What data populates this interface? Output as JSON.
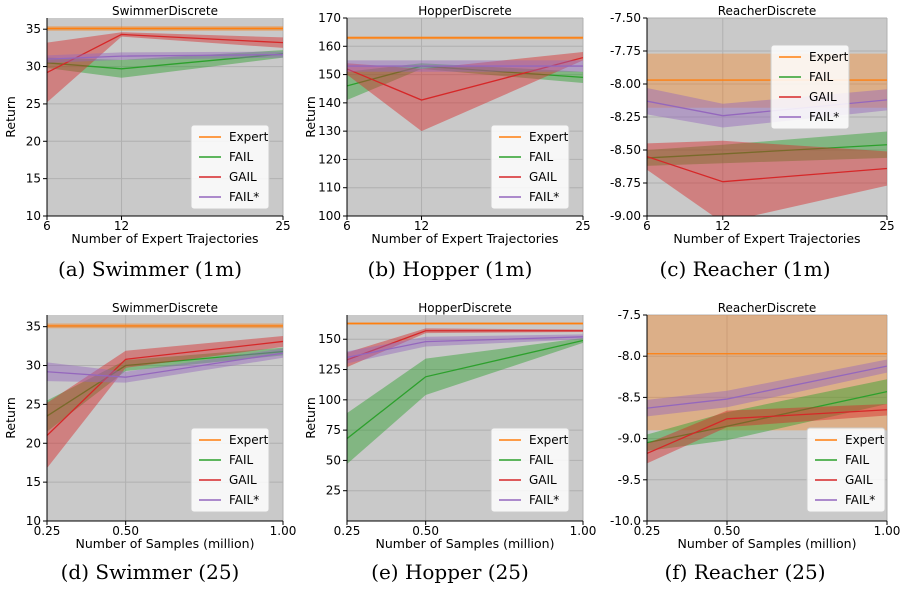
{
  "figure": {
    "captions": [
      "(a) Swimmer (1m)",
      "(b) Hopper (1m)",
      "(c) Reacher (1m)",
      "(d) Swimmer (25)",
      "(e) Hopper (25)",
      "(f) Reacher (25)"
    ]
  },
  "colors": {
    "Expert": "#ff7f0e",
    "FAIL": "#2ca02c",
    "GAIL": "#d62728",
    "FAIL*": "#9467bd",
    "panel_bg": "#c9c9c9",
    "grid": "#b0b0b0"
  },
  "chart_data": [
    {
      "type": "line",
      "title": "SwimmerDiscrete",
      "xlabel": "Number of Expert Trajectories",
      "ylabel": "Return",
      "x": [
        6,
        12,
        25
      ],
      "xticklabels": [
        "6",
        "12",
        "25"
      ],
      "xlim": [
        6,
        25
      ],
      "ylim": [
        10,
        36.5
      ],
      "yticks": [
        10,
        15,
        20,
        25,
        30,
        35
      ],
      "yticklabels": [
        "10",
        "15",
        "20",
        "25",
        "30",
        "35"
      ],
      "legend_position": "lower right",
      "grid": true,
      "series": [
        {
          "name": "Expert",
          "values": [
            35.1,
            35.1,
            35.1
          ],
          "lower": [
            34.8,
            34.8,
            34.8
          ],
          "upper": [
            35.4,
            35.4,
            35.4
          ]
        },
        {
          "name": "FAIL",
          "values": [
            30.5,
            29.7,
            31.7
          ],
          "lower": [
            29.8,
            28.5,
            31.2
          ],
          "upper": [
            31.2,
            30.9,
            32.2
          ]
        },
        {
          "name": "GAIL",
          "values": [
            29.2,
            34.3,
            33.2
          ],
          "lower": [
            25.2,
            34.0,
            32.5
          ],
          "upper": [
            33.2,
            34.6,
            33.9
          ]
        },
        {
          "name": "FAIL*",
          "values": [
            31.0,
            31.4,
            31.6
          ],
          "lower": [
            30.5,
            30.9,
            31.2
          ],
          "upper": [
            31.5,
            31.9,
            32.0
          ]
        }
      ]
    },
    {
      "type": "line",
      "title": "HopperDiscrete",
      "xlabel": "Number of Expert Trajectories",
      "ylabel": "Return",
      "x": [
        6,
        12,
        25
      ],
      "xticklabels": [
        "6",
        "12",
        "25"
      ],
      "xlim": [
        6,
        25
      ],
      "ylim": [
        100,
        170
      ],
      "yticks": [
        100,
        110,
        120,
        130,
        140,
        150,
        160,
        170
      ],
      "yticklabels": [
        "100",
        "110",
        "120",
        "130",
        "140",
        "150",
        "160",
        "170"
      ],
      "legend_position": "lower right",
      "grid": true,
      "series": [
        {
          "name": "Expert",
          "values": [
            163,
            163,
            163
          ],
          "lower": [
            162.5,
            162.5,
            162.5
          ],
          "upper": [
            163.5,
            163.5,
            163.5
          ]
        },
        {
          "name": "FAIL",
          "values": [
            146,
            153,
            149
          ],
          "lower": [
            141,
            152,
            147
          ],
          "upper": [
            151,
            154,
            151
          ]
        },
        {
          "name": "GAIL",
          "values": [
            152,
            141,
            156
          ],
          "lower": [
            150,
            130,
            155
          ],
          "upper": [
            154,
            152,
            158
          ]
        },
        {
          "name": "FAIL*",
          "values": [
            153,
            153,
            153
          ],
          "lower": [
            151,
            151,
            151
          ],
          "upper": [
            155,
            155,
            155
          ]
        }
      ]
    },
    {
      "type": "line",
      "title": "ReacherDiscrete",
      "xlabel": "Number of Expert Trajectories",
      "ylabel": "",
      "x": [
        6,
        12,
        25
      ],
      "xticklabels": [
        "6",
        "12",
        "25"
      ],
      "xlim": [
        6,
        25
      ],
      "ylim": [
        -9.0,
        -7.5
      ],
      "yticks": [
        -9.0,
        -8.75,
        -8.5,
        -8.25,
        -8.0,
        -7.75,
        -7.5
      ],
      "yticklabels": [
        "-9.00",
        "-8.75",
        "-8.50",
        "-8.25",
        "-8.00",
        "-7.75",
        "-7.50"
      ],
      "legend_position": "upper right",
      "grid": true,
      "series": [
        {
          "name": "Expert",
          "values": [
            -7.97,
            -7.97,
            -7.97
          ],
          "lower": [
            -8.18,
            -8.18,
            -8.18
          ],
          "upper": [
            -7.77,
            -7.77,
            -7.77
          ]
        },
        {
          "name": "FAIL",
          "values": [
            -8.56,
            -8.53,
            -8.46
          ],
          "lower": [
            -8.62,
            -8.6,
            -8.56
          ],
          "upper": [
            -8.5,
            -8.46,
            -8.36
          ]
        },
        {
          "name": "GAIL",
          "values": [
            -8.55,
            -8.74,
            -8.64
          ],
          "lower": [
            -8.65,
            -9.05,
            -8.77
          ],
          "upper": [
            -8.45,
            -8.43,
            -8.51
          ]
        },
        {
          "name": "FAIL*",
          "values": [
            -8.13,
            -8.24,
            -8.12
          ],
          "lower": [
            -8.23,
            -8.33,
            -8.2
          ],
          "upper": [
            -8.03,
            -8.15,
            -8.04
          ]
        }
      ]
    },
    {
      "type": "line",
      "title": "SwimmerDiscrete",
      "xlabel": "Number of Samples (million)",
      "ylabel": "Return",
      "x": [
        0.25,
        0.5,
        1.0
      ],
      "xticklabels": [
        "0.25",
        "0.50",
        "1.00"
      ],
      "xlim": [
        0.25,
        1.0
      ],
      "ylim": [
        10,
        36.5
      ],
      "yticks": [
        10,
        15,
        20,
        25,
        30,
        35
      ],
      "yticklabels": [
        "10",
        "15",
        "20",
        "25",
        "30",
        "35"
      ],
      "legend_position": "lower right",
      "grid": true,
      "series": [
        {
          "name": "Expert",
          "values": [
            35.1,
            35.1,
            35.1
          ],
          "lower": [
            34.8,
            34.8,
            34.8
          ],
          "upper": [
            35.4,
            35.4,
            35.4
          ]
        },
        {
          "name": "FAIL",
          "values": [
            23.5,
            30.0,
            31.8
          ],
          "lower": [
            21.5,
            29.3,
            31.3
          ],
          "upper": [
            25.5,
            30.7,
            32.3
          ]
        },
        {
          "name": "GAIL",
          "values": [
            21.0,
            30.8,
            33.1
          ],
          "lower": [
            16.8,
            29.7,
            32.4
          ],
          "upper": [
            25.2,
            31.9,
            33.8
          ]
        },
        {
          "name": "FAIL*",
          "values": [
            29.2,
            28.5,
            31.6
          ],
          "lower": [
            28.0,
            27.8,
            31.0
          ],
          "upper": [
            30.4,
            29.2,
            32.2
          ]
        }
      ]
    },
    {
      "type": "line",
      "title": "HopperDiscrete",
      "xlabel": "Number of Samples (million)",
      "ylabel": "Return",
      "x": [
        0.25,
        0.5,
        1.0
      ],
      "xticklabels": [
        "0.25",
        "0.50",
        "1.00"
      ],
      "xlim": [
        0.25,
        1.0
      ],
      "ylim": [
        0,
        170
      ],
      "yticks": [
        25,
        50,
        75,
        100,
        125,
        150
      ],
      "yticklabels": [
        "25",
        "50",
        "75",
        "100",
        "125",
        "150"
      ],
      "legend_position": "lower right",
      "grid": true,
      "series": [
        {
          "name": "Expert",
          "values": [
            163,
            163,
            163
          ],
          "lower": [
            162,
            162,
            162
          ],
          "upper": [
            164,
            164,
            164
          ]
        },
        {
          "name": "FAIL",
          "values": [
            68,
            119,
            149
          ],
          "lower": [
            47,
            104,
            147
          ],
          "upper": [
            89,
            134,
            151
          ]
        },
        {
          "name": "GAIL",
          "values": [
            133,
            157,
            157
          ],
          "lower": [
            127,
            155,
            156
          ],
          "upper": [
            139,
            159,
            158
          ]
        },
        {
          "name": "FAIL*",
          "values": [
            135,
            148,
            152
          ],
          "lower": [
            130,
            144,
            150
          ],
          "upper": [
            140,
            152,
            154
          ]
        }
      ]
    },
    {
      "type": "line",
      "title": "ReacherDiscrete",
      "xlabel": "Number of Samples (million)",
      "ylabel": "",
      "x": [
        0.25,
        0.5,
        1.0
      ],
      "xticklabels": [
        "0.25",
        "0.50",
        "1.00"
      ],
      "xlim": [
        0.25,
        1.0
      ],
      "ylim": [
        -10.0,
        -7.5
      ],
      "yticks": [
        -10.0,
        -9.5,
        -9.0,
        -8.5,
        -8.0,
        -7.5
      ],
      "yticklabels": [
        "-10.0",
        "-9.5",
        "-9.0",
        "-8.5",
        "-8.0",
        "-7.5"
      ],
      "legend_position": "lower right",
      "grid": true,
      "series": [
        {
          "name": "Expert",
          "values": [
            -7.97,
            -7.97,
            -7.97
          ],
          "lower": [
            -8.9,
            -8.9,
            -8.9
          ],
          "upper": [
            -7.5,
            -7.5,
            -7.5
          ]
        },
        {
          "name": "FAIL",
          "values": [
            -9.05,
            -8.85,
            -8.43
          ],
          "lower": [
            -9.15,
            -9.02,
            -8.58
          ],
          "upper": [
            -8.95,
            -8.68,
            -8.28
          ]
        },
        {
          "name": "GAIL",
          "values": [
            -9.18,
            -8.76,
            -8.65
          ],
          "lower": [
            -9.3,
            -8.86,
            -8.72
          ],
          "upper": [
            -9.06,
            -8.66,
            -8.58
          ]
        },
        {
          "name": "FAIL*",
          "values": [
            -8.63,
            -8.52,
            -8.12
          ],
          "lower": [
            -8.73,
            -8.62,
            -8.2
          ],
          "upper": [
            -8.53,
            -8.42,
            -8.04
          ]
        }
      ]
    }
  ]
}
